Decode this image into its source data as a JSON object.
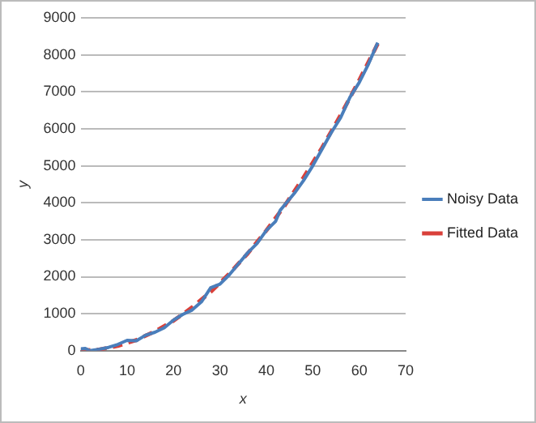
{
  "chart_data": {
    "type": "line",
    "xlabel": "x",
    "ylabel": "y",
    "xlim": [
      0,
      70
    ],
    "xticks": [
      0,
      10,
      20,
      30,
      40,
      50,
      60,
      70
    ],
    "ylim": [
      0,
      9000
    ],
    "yticks": [
      0,
      1000,
      2000,
      3000,
      4000,
      5000,
      6000,
      7000,
      8000,
      9000
    ],
    "grid": "y",
    "legend": "right",
    "marker": "none",
    "series": [
      {
        "name": "Noisy Data",
        "color": "#4a7ebb",
        "line_style": "solid",
        "x": [
          0,
          1,
          2,
          4,
          6,
          8,
          10,
          12,
          14,
          16,
          18,
          20,
          22,
          24,
          26,
          28,
          30,
          32,
          34,
          36,
          38,
          40,
          42,
          43,
          46,
          48,
          50,
          52,
          54,
          56,
          58,
          60,
          62,
          64
        ],
        "values": [
          50,
          60,
          0,
          40,
          90,
          170,
          280,
          270,
          420,
          500,
          620,
          830,
          980,
          1100,
          1320,
          1700,
          1800,
          2050,
          2350,
          2650,
          2900,
          3250,
          3500,
          3800,
          4250,
          4600,
          5000,
          5450,
          5900,
          6300,
          6850,
          7250,
          7750,
          8330
        ]
      },
      {
        "name": "Fitted Data",
        "color": "#d9403a",
        "line_style": "dashed",
        "x": [
          0,
          4,
          8,
          12,
          16,
          20,
          24,
          28,
          32,
          36,
          40,
          44,
          48,
          52,
          56,
          60,
          64
        ],
        "values": [
          0,
          30,
          130,
          290,
          520,
          810,
          1170,
          1590,
          2080,
          2630,
          3250,
          3930,
          4680,
          5490,
          6370,
          7310,
          8300
        ]
      }
    ]
  }
}
